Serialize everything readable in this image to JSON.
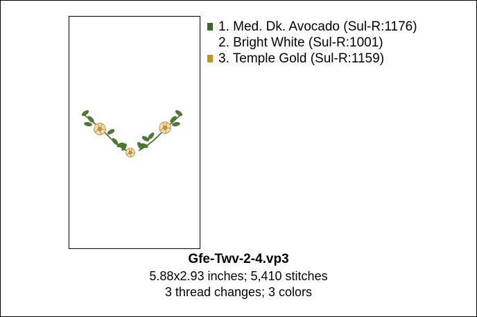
{
  "colors": [
    {
      "label": "1.  Med. Dk. Avocado (Sul-R:1176)",
      "hex": "#3a6b24",
      "show_swatch": true
    },
    {
      "label": "2.  Bright White (Sul-R:1001)",
      "hex": "#ffffff",
      "show_swatch": false
    },
    {
      "label": "3.  Temple Gold (Sul-R:1159)",
      "hex": "#c9921c",
      "show_swatch": true
    }
  ],
  "file": {
    "name": "Gfe-Twv-2-4.vp3",
    "size_and_stitches": "5.88x2.93 inches; 5,410 stitches",
    "changes_and_colors": "3 thread changes; 3 colors"
  },
  "palette": {
    "leaf": "#4f7a35",
    "leaf_dark": "#3a6b24",
    "petal": "#efdcae",
    "petal_outline": "#b88a3d",
    "center": "#c9921c"
  }
}
